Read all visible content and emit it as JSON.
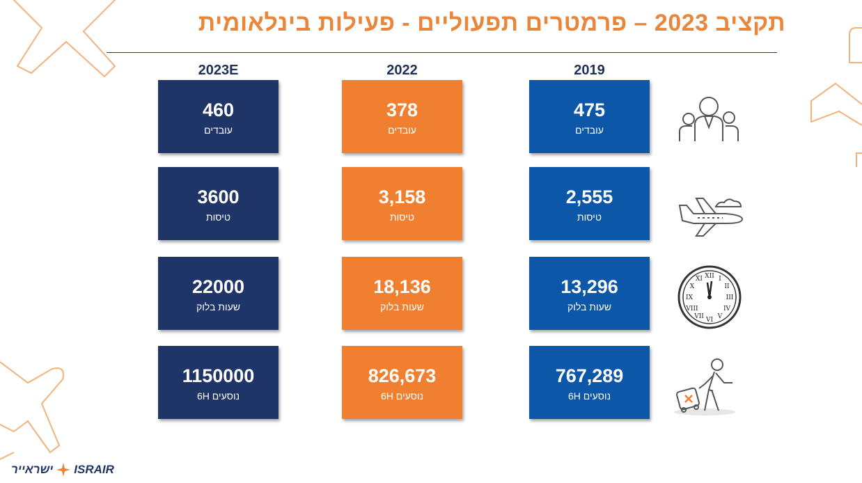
{
  "title": "תקציב 2023 – פרמטרים תפעוליים - פעילות בינלאומית",
  "columns": {
    "c2019": "2019",
    "c2022": "2022",
    "c2023": "2023E"
  },
  "rows": [
    {
      "icon": "people-icon",
      "v2019": "475",
      "v2022": "378",
      "v2023": "460",
      "l2019": "עובדים",
      "l2022": "עובדים",
      "l2023": "עובדים"
    },
    {
      "icon": "airplane-icon",
      "v2019": "2,555",
      "v2022": "3,158",
      "v2023": "3600",
      "l2019": "טיסות",
      "l2022": "טיסות",
      "l2023": "טיסות"
    },
    {
      "icon": "clock-icon",
      "v2019": "13,296",
      "v2022": "18,136",
      "v2023": "22000",
      "l2019": "שעות בלוק",
      "l2022": "שעות בלוק",
      "l2023": "שעות בלוק"
    },
    {
      "icon": "traveler-icon",
      "v2019": "767,289",
      "v2022": "826,673",
      "v2023": "1150000",
      "l2019": "נוסעים 6H",
      "l2022": "נוסעים 6H",
      "l2023": "נוסעים 6H"
    }
  ],
  "logo": {
    "hebrew": "ישראייר",
    "english": "ISRAIR"
  },
  "colors": {
    "blue": "#0d57a8",
    "orange": "#f08030",
    "navy": "#1f3568",
    "title": "#e8863c"
  }
}
